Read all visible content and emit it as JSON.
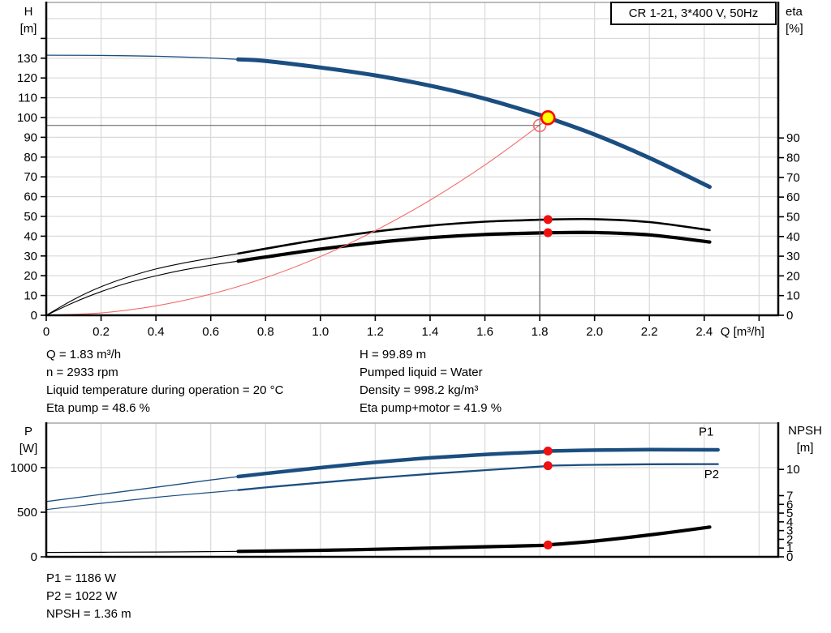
{
  "title_box": "CR 1-21, 3*400 V, 50Hz",
  "axis_labels": {
    "top_left_1": "H",
    "top_left_2": "[m]",
    "top_right_1": "eta",
    "top_right_2": "[%]",
    "bot_left_1": "P",
    "bot_left_2": "[W]",
    "bot_right_1": "NPSH",
    "bot_right_2": "[m]"
  },
  "info_mid": {
    "left": [
      "Q = 1.83 m³/h",
      "n = 2933 rpm",
      "Liquid temperature during operation = 20 °C",
      "Eta pump = 48.6 %"
    ],
    "right": [
      "H = 99.89 m",
      "Pumped liquid = Water",
      "Density = 998.2 kg/m³",
      "Eta pump+motor = 41.9 %"
    ]
  },
  "info_bottom": [
    "P1 = 1186 W",
    "P2 = 1022 W",
    "NPSH = 1.36 m"
  ],
  "colors": {
    "curve_blue": "#1b4e80",
    "curve_black": "#000000",
    "system_red": "#f46a6a",
    "dot_red": "#ee1111",
    "duty_yellow": "#ffff00",
    "duty_ring": "#ff0000",
    "grid": "#d9d9d9",
    "border": "#a6a6a6",
    "axis": "#000000",
    "crosshair": "#595959",
    "label_blue": "#1b4e80"
  },
  "chart_data": [
    {
      "id": "qh-eta",
      "type": "line",
      "x": {
        "label": "Q [m³/h]",
        "min": 0,
        "max": 2.67,
        "ticks": [
          0,
          0.2,
          0.4,
          0.6,
          0.8,
          1.0,
          1.2,
          1.4,
          1.6,
          1.8,
          2.0,
          2.2,
          2.4,
          2.6
        ],
        "grid": [
          0.2,
          0.4,
          0.6,
          0.8,
          1.0,
          1.2,
          1.4,
          1.6,
          1.8,
          2.0,
          2.2,
          2.4,
          2.6
        ],
        "labels": [
          [
            0,
            "0"
          ],
          [
            0.2,
            "0.2"
          ],
          [
            0.4,
            "0.4"
          ],
          [
            0.6,
            "0.6"
          ],
          [
            0.8,
            "0.8"
          ],
          [
            1.0,
            "1.0"
          ],
          [
            1.2,
            "1.2"
          ],
          [
            1.4,
            "1.4"
          ],
          [
            1.6,
            "1.6"
          ],
          [
            1.8,
            "1.8"
          ],
          [
            2.0,
            "2.0"
          ],
          [
            2.2,
            "2.2"
          ],
          [
            2.4,
            "2.4"
          ]
        ]
      },
      "y_left": {
        "label": "H [m]",
        "min": 0,
        "max": 158.2,
        "ticks": [
          0,
          10,
          20,
          30,
          40,
          50,
          60,
          70,
          80,
          90,
          100,
          110,
          120,
          130,
          140
        ],
        "labels": [
          0,
          10,
          20,
          30,
          40,
          50,
          60,
          70,
          80,
          90,
          100,
          110,
          120,
          130
        ],
        "grid": [
          10,
          20,
          30,
          40,
          50,
          60,
          70,
          80,
          90,
          100,
          110,
          120,
          130,
          140,
          150
        ]
      },
      "y_right": {
        "label": "eta [%]",
        "min": 0,
        "max": 158.8,
        "ticks": [
          0,
          10,
          20,
          30,
          40,
          50,
          60,
          70,
          80,
          90
        ],
        "labels": [
          0,
          10,
          20,
          30,
          40,
          50,
          60,
          70,
          80,
          90
        ],
        "grid": []
      },
      "series": [
        {
          "name": "pump-curve",
          "axis": "left",
          "color": "#1b4e80",
          "width_thin": 1.3,
          "width": 5,
          "bold_from": 0.7,
          "points": [
            [
              0,
              131.5
            ],
            [
              0.2,
              131.4
            ],
            [
              0.4,
              131.0
            ],
            [
              0.6,
              130.1
            ],
            [
              0.7,
              129.4
            ],
            [
              0.8,
              128.6
            ],
            [
              1.0,
              125.3
            ],
            [
              1.2,
              121.3
            ],
            [
              1.4,
              116.1
            ],
            [
              1.6,
              109.5
            ],
            [
              1.8,
              101.3
            ],
            [
              1.83,
              99.89
            ],
            [
              2.0,
              91.4
            ],
            [
              2.2,
              79.6
            ],
            [
              2.42,
              64.9
            ]
          ]
        },
        {
          "name": "eta-pump-curve",
          "axis": "right",
          "color": "#000000",
          "width_thin": 1.1,
          "width": 2.6,
          "bold_from": 0.7,
          "points": [
            [
              0,
              0
            ],
            [
              0.1,
              8
            ],
            [
              0.2,
              14.5
            ],
            [
              0.3,
              19.5
            ],
            [
              0.4,
              23.5
            ],
            [
              0.5,
              26.5
            ],
            [
              0.6,
              29.0
            ],
            [
              0.7,
              31.3
            ],
            [
              0.8,
              33.8
            ],
            [
              1.0,
              38.5
            ],
            [
              1.2,
              42.5
            ],
            [
              1.4,
              45.5
            ],
            [
              1.6,
              47.5
            ],
            [
              1.8,
              48.5
            ],
            [
              1.83,
              48.6
            ],
            [
              2.0,
              48.8
            ],
            [
              2.2,
              47.3
            ],
            [
              2.42,
              43.2
            ]
          ]
        },
        {
          "name": "eta-pump-motor-curve",
          "axis": "right",
          "color": "#000000",
          "width_thin": 1.1,
          "width": 4.2,
          "bold_from": 0.7,
          "points": [
            [
              0,
              0
            ],
            [
              0.1,
              6.5
            ],
            [
              0.2,
              12.0
            ],
            [
              0.3,
              16.5
            ],
            [
              0.4,
              20.0
            ],
            [
              0.5,
              23.0
            ],
            [
              0.6,
              25.4
            ],
            [
              0.7,
              27.5
            ],
            [
              0.8,
              29.6
            ],
            [
              1.0,
              33.6
            ],
            [
              1.2,
              36.9
            ],
            [
              1.4,
              39.4
            ],
            [
              1.6,
              41.0
            ],
            [
              1.8,
              41.8
            ],
            [
              1.83,
              41.9
            ],
            [
              2.0,
              42.0
            ],
            [
              2.2,
              40.8
            ],
            [
              2.42,
              37.2
            ]
          ]
        },
        {
          "name": "system-curve",
          "axis": "left",
          "color": "#f46a6a",
          "width_thin": 1.1,
          "width": 1.1,
          "bold_from": 99,
          "points": [
            [
              0,
              0
            ],
            [
              0.2,
              1.2
            ],
            [
              0.4,
              4.75
            ],
            [
              0.6,
              10.7
            ],
            [
              0.8,
              19.0
            ],
            [
              1.0,
              29.7
            ],
            [
              1.2,
              42.8
            ],
            [
              1.4,
              58.2
            ],
            [
              1.6,
              76.0
            ],
            [
              1.8,
              96.2
            ],
            [
              1.83,
              99.89
            ]
          ]
        }
      ],
      "crosshair": {
        "q": 1.8,
        "h": 96.0,
        "top": 99.89
      },
      "markers": [
        {
          "name": "duty-point-requested",
          "axis": "left",
          "q": 1.8,
          "v": 96.0,
          "style": "openred"
        },
        {
          "name": "eta-pump-dot",
          "axis": "right",
          "q": 1.83,
          "v": 48.6,
          "style": "red"
        },
        {
          "name": "eta-pump-motor-dot",
          "axis": "right",
          "q": 1.83,
          "v": 41.9,
          "style": "red"
        },
        {
          "name": "duty-point-actual",
          "axis": "left",
          "q": 1.83,
          "v": 99.89,
          "style": "yellow"
        }
      ]
    },
    {
      "id": "power-npsh",
      "type": "line",
      "x": {
        "label": "",
        "min": 0,
        "max": 2.67,
        "ticks": [],
        "grid": [
          0.2,
          0.4,
          0.6,
          0.8,
          1.0,
          1.2,
          1.4,
          1.6,
          1.8,
          2.0,
          2.2,
          2.4,
          2.6
        ],
        "labels": []
      },
      "y_left": {
        "label": "P [W]",
        "min": 0,
        "max": 1500,
        "ticks": [
          0,
          500,
          1000
        ],
        "labels": [
          0,
          500,
          1000
        ],
        "grid": [
          500,
          1000
        ]
      },
      "y_right": {
        "label": "NPSH [m]",
        "min": 0,
        "max": 15.3,
        "ticks": [
          0,
          1,
          2,
          3,
          4,
          5,
          6,
          7,
          10
        ],
        "labels": [
          0,
          1,
          2,
          3,
          4,
          5,
          6,
          7,
          10
        ],
        "grid": []
      },
      "series": [
        {
          "name": "p1-curve",
          "axis": "left",
          "color": "#1b4e80",
          "width_thin": 1.3,
          "width": 4.5,
          "bold_from": 0.7,
          "label": "P1",
          "label_q": 2.38,
          "label_v": 1360,
          "points": [
            [
              0,
              620
            ],
            [
              0.2,
              700
            ],
            [
              0.4,
              780
            ],
            [
              0.6,
              862
            ],
            [
              0.7,
              900
            ],
            [
              0.8,
              935
            ],
            [
              1.0,
              1000
            ],
            [
              1.2,
              1060
            ],
            [
              1.4,
              1110
            ],
            [
              1.6,
              1148
            ],
            [
              1.8,
              1176
            ],
            [
              1.83,
              1186
            ],
            [
              2.0,
              1196
            ],
            [
              2.2,
              1202
            ],
            [
              2.45,
              1200
            ]
          ]
        },
        {
          "name": "p2-curve",
          "axis": "left",
          "color": "#1b4e80",
          "width_thin": 1.2,
          "width": 2.3,
          "bold_from": 0.7,
          "label": "P2",
          "label_q": 2.4,
          "label_v": 880,
          "points": [
            [
              0,
              530
            ],
            [
              0.2,
              600
            ],
            [
              0.4,
              667
            ],
            [
              0.6,
              722
            ],
            [
              0.7,
              748
            ],
            [
              0.8,
              778
            ],
            [
              1.0,
              832
            ],
            [
              1.2,
              884
            ],
            [
              1.4,
              930
            ],
            [
              1.6,
              972
            ],
            [
              1.8,
              1012
            ],
            [
              1.83,
              1022
            ],
            [
              2.0,
              1032
            ],
            [
              2.2,
              1038
            ],
            [
              2.45,
              1040
            ]
          ]
        },
        {
          "name": "npsh-curve",
          "axis": "right",
          "color": "#000000",
          "width_thin": 1.2,
          "width": 4.2,
          "bold_from": 0.7,
          "points": [
            [
              0,
              0.5
            ],
            [
              0.4,
              0.55
            ],
            [
              0.7,
              0.62
            ],
            [
              1.0,
              0.74
            ],
            [
              1.2,
              0.86
            ],
            [
              1.4,
              1.0
            ],
            [
              1.6,
              1.15
            ],
            [
              1.8,
              1.3
            ],
            [
              1.83,
              1.36
            ],
            [
              2.0,
              1.8
            ],
            [
              2.2,
              2.5
            ],
            [
              2.42,
              3.4
            ]
          ]
        }
      ],
      "markers": [
        {
          "name": "p1-dot",
          "axis": "left",
          "q": 1.83,
          "v": 1186,
          "style": "red"
        },
        {
          "name": "p2-dot",
          "axis": "left",
          "q": 1.83,
          "v": 1022,
          "style": "red"
        },
        {
          "name": "npsh-dot",
          "axis": "right",
          "q": 1.83,
          "v": 1.36,
          "style": "red"
        }
      ]
    }
  ]
}
